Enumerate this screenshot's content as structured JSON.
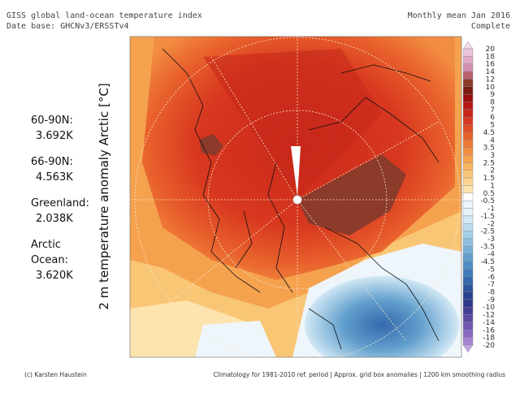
{
  "header": {
    "title": "GISS global land-ocean temperature index",
    "database": "Date base: GHCNv3/ERSSTv4",
    "period": "Monthly mean Jan 2016",
    "status": "Complete"
  },
  "axis_label": "2 m temperature anomaly Arctic [°C]",
  "stats": [
    {
      "lines": [
        "60-90N:"
      ],
      "value": "3.692K"
    },
    {
      "lines": [
        "66-90N:"
      ],
      "value": "4.563K"
    },
    {
      "lines": [
        "Greenland:"
      ],
      "value": "2.038K"
    },
    {
      "lines": [
        "Arctic",
        "Ocean:"
      ],
      "value": "3.620K"
    }
  ],
  "colorbar": {
    "labels": [
      20,
      18,
      16,
      14,
      12,
      10,
      9,
      8,
      7,
      6,
      5,
      4.5,
      4,
      3.5,
      3,
      2.5,
      2,
      1.5,
      1,
      0.5,
      -0.5,
      -1,
      -1.5,
      -2,
      -2.5,
      -3,
      -3.5,
      -4,
      -4.5,
      -5,
      -6,
      -7,
      -8,
      -9,
      -10,
      -12,
      -14,
      -16,
      -18,
      -20
    ],
    "colors": [
      "#f3dbe9",
      "#eac4da",
      "#e0aac8",
      "#d48fb2",
      "#b9606e",
      "#8c3a2a",
      "#7a1c10",
      "#9a0f0f",
      "#b51a14",
      "#c8281a",
      "#d8381f",
      "#e24a25",
      "#e8602c",
      "#ee7835",
      "#f28e42",
      "#f5a24f",
      "#f7b560",
      "#f9c676",
      "#fbd590",
      "#fde3ad",
      "#ffffff",
      "#eef6fc",
      "#e6f2fa",
      "#d2e8f5",
      "#bcdcef",
      "#a5cee8",
      "#8dbfe0",
      "#76afd6",
      "#619fcd",
      "#4e8ec4",
      "#3f7cb9",
      "#3469ad",
      "#2c569f",
      "#284490",
      "#2f3a8a",
      "#463e95",
      "#5c4aa3",
      "#7358b2",
      "#8b6bc2",
      "#a584d2",
      "#c2a6e2"
    ]
  },
  "footer": {
    "credit": "(c) Karsten Haustein",
    "note": "Climatology for 1981-2010 ref. period | Approx. grid box anomalies | 1200 km smoothing radius"
  }
}
